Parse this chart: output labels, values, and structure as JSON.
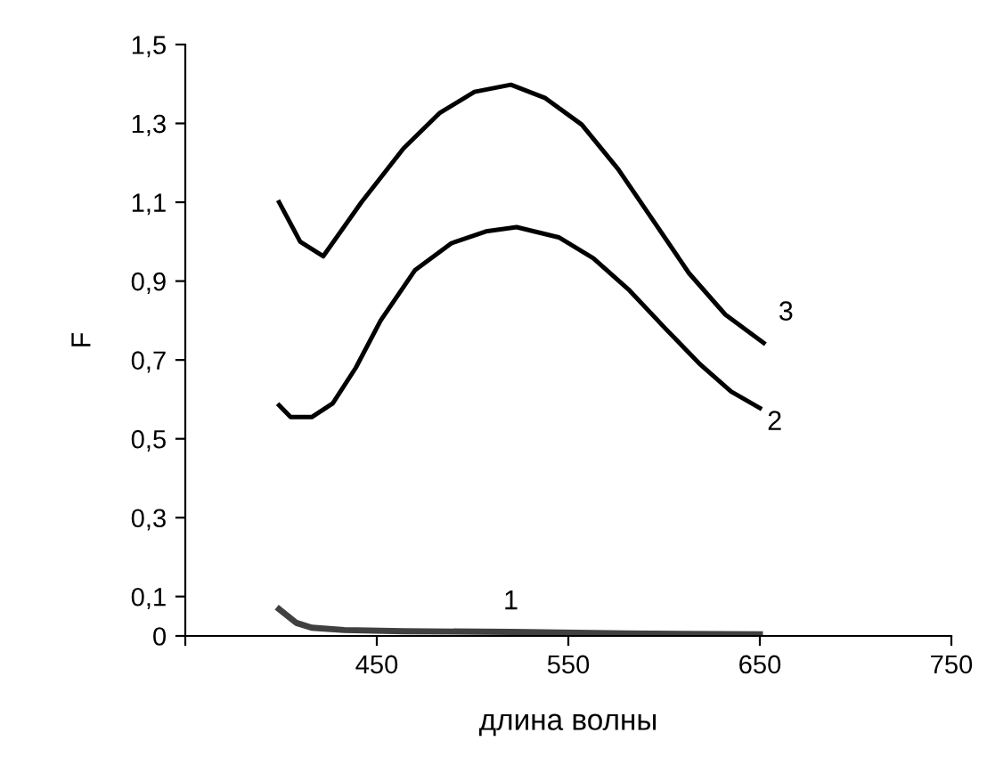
{
  "chart_data": {
    "type": "line",
    "xlabel": "длина волны",
    "ylabel": "F",
    "xlim": [
      350,
      750
    ],
    "xticks": [
      {
        "value": 350,
        "label": null
      },
      450,
      550,
      650,
      750
    ],
    "ylim": [
      0,
      1.5
    ],
    "yticks": [
      {
        "value": 0,
        "label": "0"
      },
      {
        "value": 0.1,
        "label": "0,1"
      },
      {
        "value": 0.3,
        "label": "0,3"
      },
      {
        "value": 0.5,
        "label": "0,5"
      },
      {
        "value": 0.7,
        "label": "0,7"
      },
      {
        "value": 0.9,
        "label": "0,9"
      },
      {
        "value": 1.1,
        "label": "1,1"
      },
      {
        "value": 1.3,
        "label": "1,3"
      },
      {
        "value": 1.5,
        "label": "1,5"
      }
    ],
    "grid": false,
    "legend": false,
    "marker": "none",
    "line_style": "solid",
    "series": [
      {
        "name": "1",
        "color": "#404040",
        "x": [
          399,
          408,
          416,
          433,
          464,
          520,
          580,
          650
        ],
        "values": [
          0.068,
          0.033,
          0.021,
          0.015,
          0.012,
          0.01,
          0.006,
          0.004
        ]
      },
      {
        "name": "2",
        "color": "#000000",
        "x": [
          399,
          405,
          416,
          427,
          439,
          452,
          470,
          489,
          507,
          523,
          545,
          563,
          582,
          601,
          619,
          635,
          650
        ],
        "values": [
          0.585,
          0.555,
          0.555,
          0.59,
          0.68,
          0.8,
          0.928,
          0.996,
          1.026,
          1.037,
          1.011,
          0.958,
          0.876,
          0.778,
          0.688,
          0.62,
          0.578
        ]
      },
      {
        "name": "3",
        "color": "#000000",
        "x": [
          399,
          410,
          422,
          442,
          464,
          483,
          501,
          520,
          538,
          557,
          576,
          594,
          613,
          632,
          652
        ],
        "values": [
          1.1,
          1.0,
          0.963,
          1.1,
          1.237,
          1.327,
          1.38,
          1.398,
          1.364,
          1.297,
          1.184,
          1.056,
          0.92,
          0.815,
          0.743
        ]
      }
    ]
  }
}
